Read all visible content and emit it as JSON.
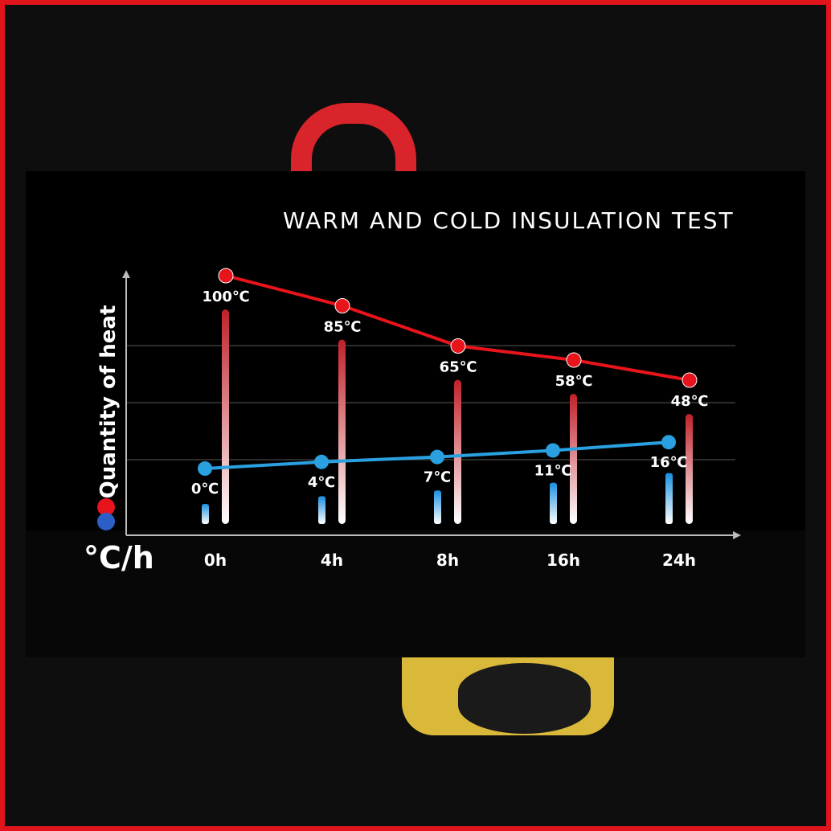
{
  "title": "WARM AND COLD INSULATION TEST",
  "chart_data": {
    "type": "line",
    "title": "WARM AND COLD INSULATION TEST",
    "ylabel": "Quantity of heat",
    "xlabel": "°C/h",
    "categories": [
      "0h",
      "4h",
      "8h",
      "16h",
      "24h"
    ],
    "series": [
      {
        "key": "hot",
        "values": [
          100,
          85,
          65,
          58,
          48
        ],
        "labels": [
          "100℃",
          "85℃",
          "65℃",
          "58℃",
          "48℃"
        ],
        "color": "#e8141c"
      },
      {
        "key": "cold",
        "values": [
          0,
          4,
          7,
          11,
          16
        ],
        "labels": [
          "0℃",
          "4℃",
          "7℃",
          "11℃",
          "16℃"
        ],
        "color": "#2aa0e0"
      }
    ],
    "grid": true,
    "legend": "left, vertical red and blue dots"
  }
}
